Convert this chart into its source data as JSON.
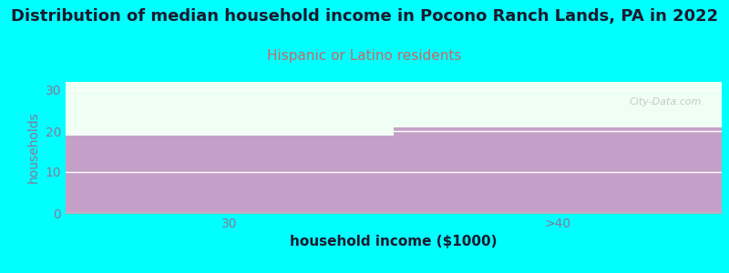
{
  "title": "Distribution of median household income in Pocono Ranch Lands, PA in 2022",
  "subtitle": "Hispanic or Latino residents",
  "categories": [
    "30",
    ">40"
  ],
  "values": [
    19,
    21
  ],
  "bar_color": "#c4a0c8",
  "background_color": "#00ffff",
  "plot_bg_color": "#f0fff4",
  "xlabel": "household income ($1000)",
  "ylabel": "households",
  "ylim": [
    0,
    32
  ],
  "yticks": [
    0,
    10,
    20,
    30
  ],
  "title_fontsize": 13,
  "subtitle_fontsize": 11,
  "subtitle_color": "#cc6666",
  "tick_color": "#887799",
  "xlabel_fontsize": 11,
  "ylabel_fontsize": 10,
  "watermark": "City-Data.com",
  "title_color": "#1a1a2e"
}
